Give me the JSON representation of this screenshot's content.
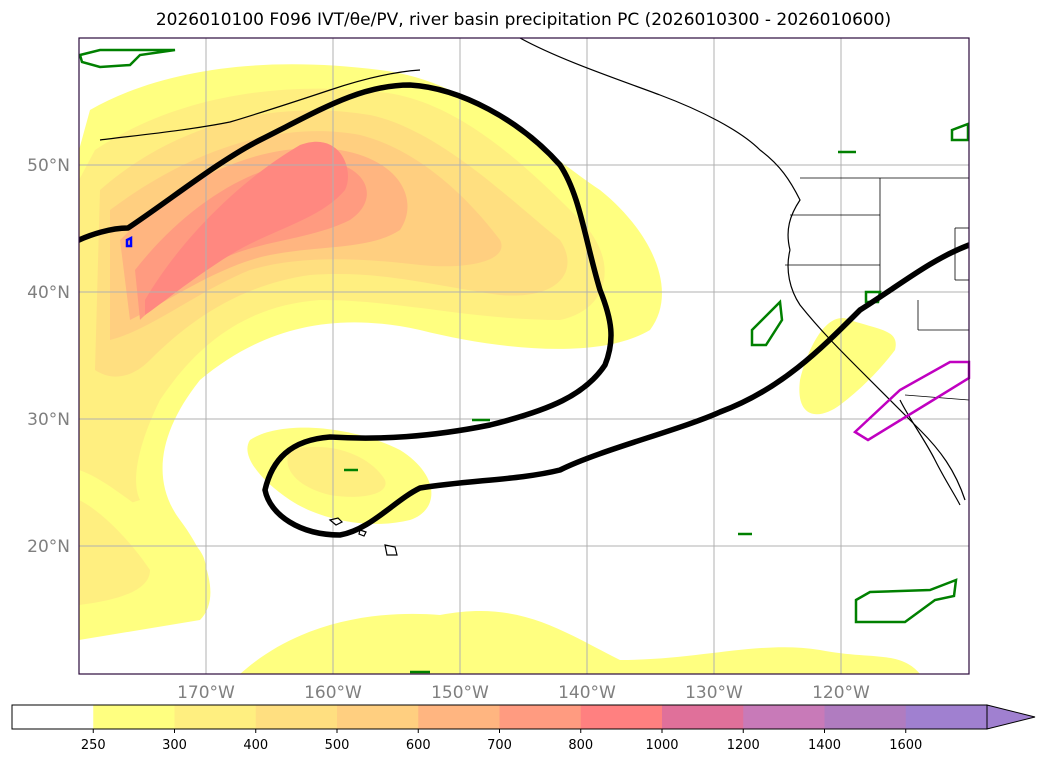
{
  "title": "2026010100 F096 IVT/θe/PV, river basin precipitation PC (2026010300 - 2026010600)",
  "map": {
    "lon_ticks": [
      "170°W",
      "160°W",
      "150°W",
      "140°W",
      "130°W",
      "120°W"
    ],
    "lat_ticks": [
      "50°N",
      "40°N",
      "30°N",
      "20°N"
    ],
    "frame_color": "#2b0a3d",
    "grid_color": "#b0b0b0"
  },
  "colorbar": {
    "levels": [
      "250",
      "300",
      "400",
      "500",
      "600",
      "700",
      "800",
      "1000",
      "1200",
      "1400",
      "1600"
    ],
    "colors": [
      "#ffffff",
      "#ffff80",
      "#ffef80",
      "#ffdf80",
      "#ffcf80",
      "#ffb580",
      "#ff9b80",
      "#ff8080",
      "#e0709a",
      "#c87ab8",
      "#b07cc0",
      "#a080d0"
    ],
    "extend": "max"
  },
  "legend_colors": {
    "contour_black": "#000000",
    "green_region": "#008000",
    "magenta_region": "#c000c0",
    "blue_region": "#0000ff"
  }
}
